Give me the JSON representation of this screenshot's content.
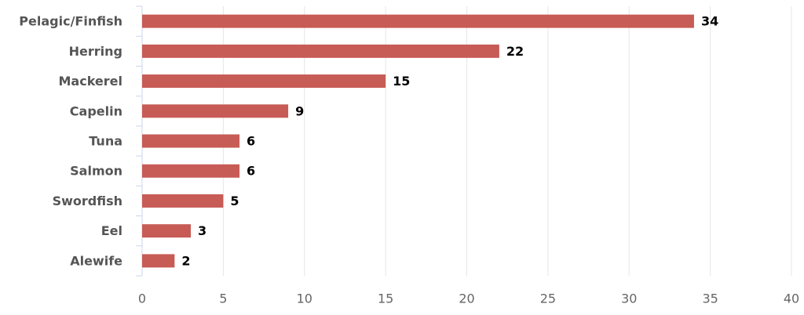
{
  "chart_data": {
    "type": "bar",
    "orientation": "horizontal",
    "categories": [
      "Pelagic/Finfish",
      "Herring",
      "Mackerel",
      "Capelin",
      "Tuna",
      "Salmon",
      "Swordfish",
      "Eel",
      "Alewife"
    ],
    "values": [
      34,
      22,
      15,
      9,
      6,
      6,
      5,
      3,
      2
    ],
    "color": "#c75b55",
    "xlim": [
      0,
      40
    ],
    "xticks": [
      0,
      5,
      10,
      15,
      20,
      25,
      30,
      35,
      40
    ],
    "grid": true
  }
}
